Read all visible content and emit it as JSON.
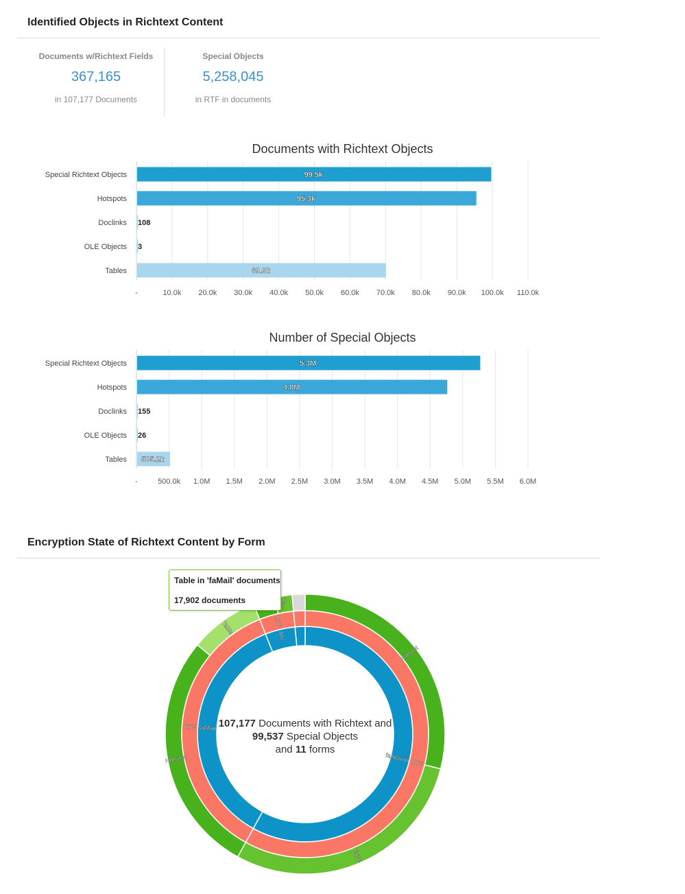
{
  "section1": {
    "title": "Identified Objects in Richtext Content"
  },
  "kpis": [
    {
      "label": "Documents w/Richtext Fields",
      "value": "367,165",
      "sub": "in 107,177 Documents"
    },
    {
      "label": "Special Objects",
      "value": "5,258,045",
      "sub": "in RTF in documents"
    }
  ],
  "colors": {
    "accent": "#3a8fd0",
    "bar_dark": "#1f9fd0",
    "bar_mid": "#3aa8d8",
    "bar_light": "#a8d6ec",
    "green_dark": "#47b21c",
    "green_mid": "#66c22e",
    "green_light": "#a3e06c",
    "salmon": "#fa7766",
    "blue_ring": "#0d93c8"
  },
  "chart_data": [
    {
      "type": "bar",
      "orientation": "horizontal",
      "title": "Documents with Richtext Objects",
      "categories": [
        "Special Richtext Objects",
        "Hotspots",
        "Doclinks",
        "OLE Objects",
        "Tables"
      ],
      "values": [
        99500,
        95300,
        108,
        3,
        69900
      ],
      "data_labels": [
        "99.5k",
        "95.3k",
        "108",
        "3",
        "69.9k"
      ],
      "xlim": [
        0,
        110000
      ],
      "xticks": [
        0,
        10000,
        20000,
        30000,
        40000,
        50000,
        60000,
        70000,
        80000,
        90000,
        100000,
        110000
      ],
      "xtick_labels": [
        "-",
        "10.0k",
        "20.0k",
        "30.0k",
        "40.0k",
        "50.0k",
        "60.0k",
        "70.0k",
        "80.0k",
        "90.0k",
        "100.0k",
        "110.0k"
      ],
      "grid": true
    },
    {
      "type": "bar",
      "orientation": "horizontal",
      "title": "Number of Special Objects",
      "categories": [
        "Special Richtext Objects",
        "Hotspots",
        "Doclinks",
        "OLE Objects",
        "Tables"
      ],
      "values": [
        5258045,
        4752688,
        155,
        26,
        505200
      ],
      "data_labels": [
        "5.3M",
        "4.8M",
        "155",
        "26",
        "505.2k"
      ],
      "xlim": [
        0,
        6000000
      ],
      "xticks": [
        0,
        500000,
        1000000,
        1500000,
        2000000,
        2500000,
        3000000,
        3500000,
        4000000,
        4500000,
        5000000,
        5500000,
        6000000
      ],
      "xtick_labels": [
        "-",
        "500.0k",
        "1.0M",
        "1.5M",
        "2.0M",
        "2.5M",
        "3.0M",
        "3.5M",
        "4.0M",
        "4.5M",
        "5.0M",
        "5.5M",
        "6.0M"
      ],
      "grid": true
    },
    {
      "type": "pie",
      "variant": "sunburst",
      "rings": {
        "inner": [
          {
            "label": "faActivities",
            "value": 58,
            "color": "#0d93c8"
          },
          {
            "label": "faMail",
            "value": 36,
            "color": "#0d93c8"
          },
          {
            "label": "Me...",
            "value": 4.5,
            "color": "#0d93c8"
          },
          {
            "label": "",
            "value": 1.5,
            "color": "#0d93c8"
          }
        ],
        "middle": [
          {
            "label": "RTF",
            "value": 58,
            "color": "#fa7766"
          },
          {
            "label": "RTF",
            "value": 36,
            "color": "#fa7766"
          },
          {
            "label": "RTF",
            "value": 4.5,
            "color": "#fa7766"
          },
          {
            "label": "",
            "value": 1.5,
            "color": "#fa7766"
          }
        ],
        "outer": [
          {
            "label": "Hotspot",
            "value": 29,
            "color": "#47b21c"
          },
          {
            "label": "Table",
            "value": 29,
            "color": "#66c22e"
          },
          {
            "label": "Hotspot",
            "value": 28,
            "color": "#47b21c"
          },
          {
            "label": "Table",
            "value": 8,
            "color": "#a3e06c"
          },
          {
            "label": "H...",
            "value": 2.5,
            "color": "#47b21c"
          },
          {
            "label": "Ta...",
            "value": 2,
            "color": "#66c22e"
          },
          {
            "label": "",
            "value": 1.5,
            "color": "#d9d9d9"
          }
        ]
      }
    }
  ],
  "section2": {
    "title": "Encryption State of Richtext Content by Form"
  },
  "tooltip": {
    "line1": "Table in 'faMail' documents",
    "line2": "17,902 documents"
  },
  "center": {
    "n1": "107,177",
    "t1": " Documents with Richtext and",
    "n2": "99,537",
    "t2": " Special Objects",
    "t3a": "and ",
    "n3": "11",
    "t3b": " forms"
  }
}
